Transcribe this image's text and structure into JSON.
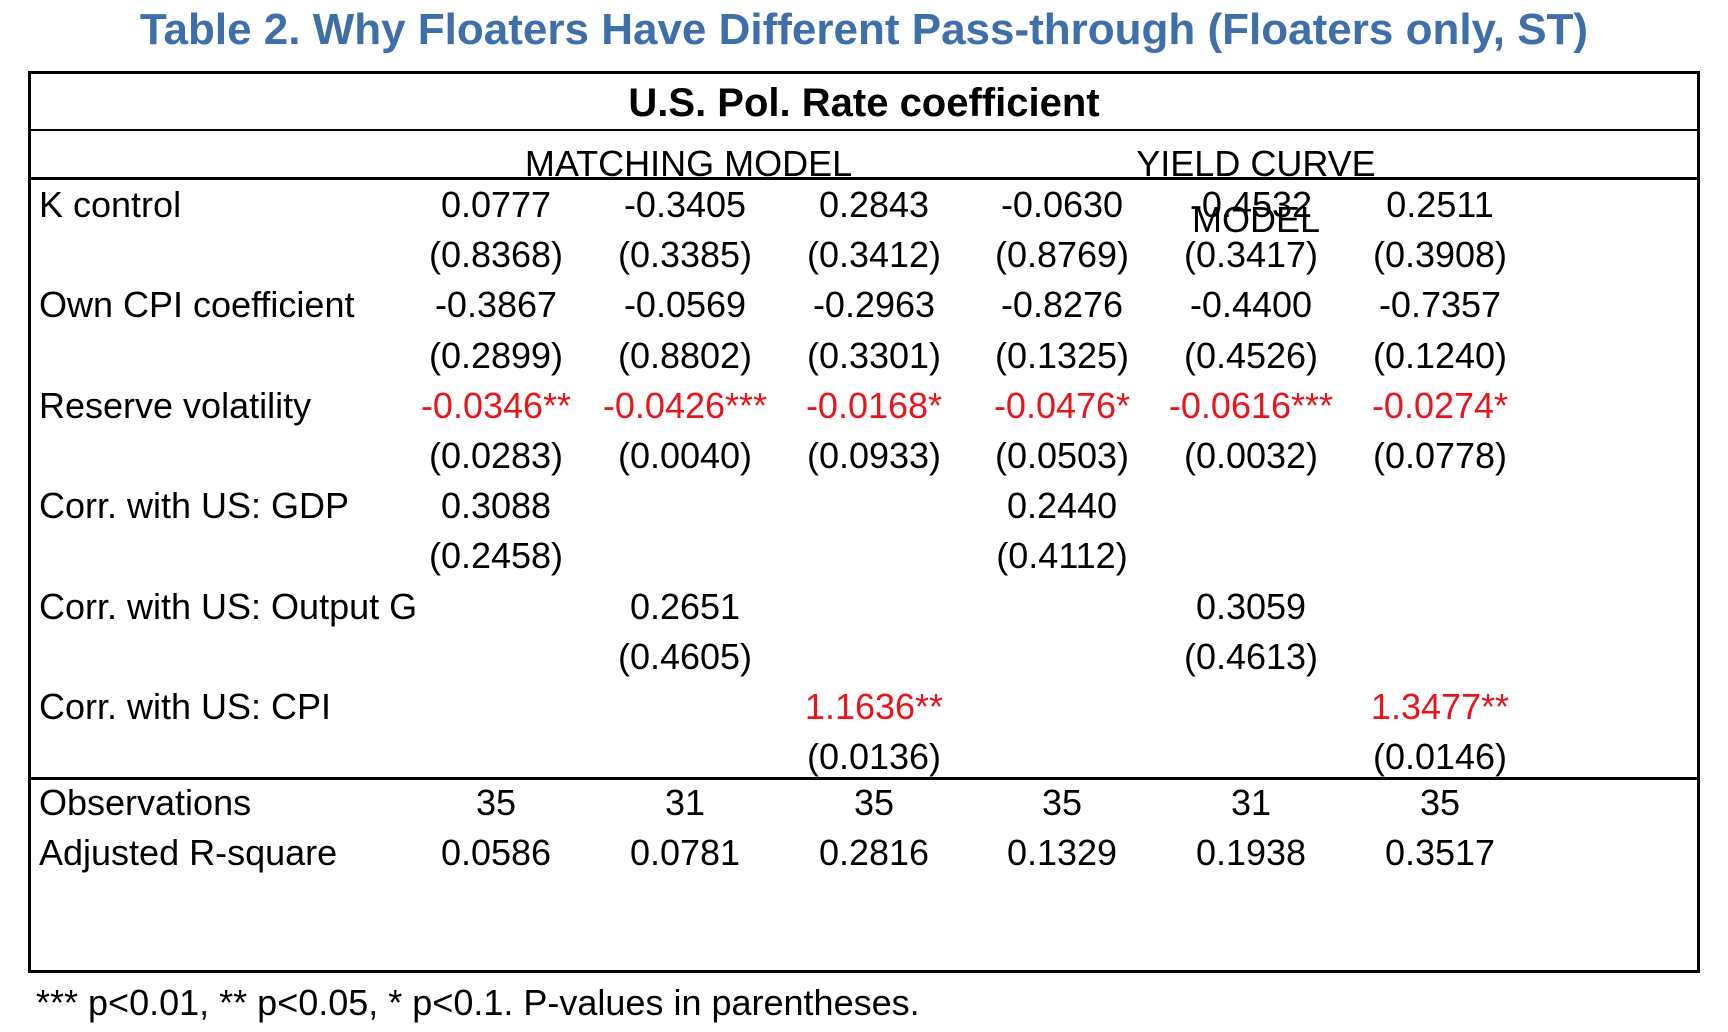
{
  "title": "Table 2. Why Floaters Have Different Pass-through (Floaters only, ST)",
  "header": "U.S. Pol. Rate coefficient",
  "models": [
    "MATCHING MODEL",
    "YIELD CURVE MODEL"
  ],
  "rows": [
    {
      "label": "K control",
      "values": [
        "0.0777",
        "-0.3405",
        "0.2843",
        "-0.0630",
        "-0.4532",
        "0.2511"
      ],
      "pvalues": [
        "(0.8368)",
        "(0.3385)",
        "(0.3412)",
        "(0.8769)",
        "(0.3417)",
        "(0.3908)"
      ],
      "significant": [
        false,
        false,
        false,
        false,
        false,
        false
      ]
    },
    {
      "label": "Own CPI coefficient",
      "values": [
        "-0.3867",
        "-0.0569",
        "-0.2963",
        "-0.8276",
        "-0.4400",
        "-0.7357"
      ],
      "pvalues": [
        "(0.2899)",
        "(0.8802)",
        "(0.3301)",
        "(0.1325)",
        "(0.4526)",
        "(0.1240)"
      ],
      "significant": [
        false,
        false,
        false,
        false,
        false,
        false
      ]
    },
    {
      "label": "Reserve volatility",
      "values": [
        "-0.0346**",
        "-0.0426***",
        "-0.0168*",
        "-0.0476*",
        "-0.0616***",
        "-0.0274*"
      ],
      "pvalues": [
        "(0.0283)",
        "(0.0040)",
        "(0.0933)",
        "(0.0503)",
        "(0.0032)",
        "(0.0778)"
      ],
      "significant": [
        true,
        true,
        true,
        true,
        true,
        true
      ]
    },
    {
      "label": "Corr. with US: GDP",
      "values": [
        "0.3088",
        "",
        "",
        "0.2440",
        "",
        ""
      ],
      "pvalues": [
        "(0.2458)",
        "",
        "",
        "(0.4112)",
        "",
        ""
      ],
      "significant": [
        false,
        false,
        false,
        false,
        false,
        false
      ]
    },
    {
      "label": "Corr. with US: Output G",
      "values": [
        "",
        "0.2651",
        "",
        "",
        "0.3059",
        ""
      ],
      "pvalues": [
        "",
        "(0.4605)",
        "",
        "",
        "(0.4613)",
        ""
      ],
      "significant": [
        false,
        false,
        false,
        false,
        false,
        false
      ]
    },
    {
      "label": "Corr. with US: CPI",
      "values": [
        "",
        "",
        "1.1636**",
        "",
        "",
        "1.3477**"
      ],
      "pvalues": [
        "",
        "",
        "(0.0136)",
        "",
        "",
        "(0.0146)"
      ],
      "significant": [
        false,
        false,
        true,
        false,
        false,
        true
      ]
    }
  ],
  "stats": [
    {
      "label": "Observations",
      "values": [
        "35",
        "31",
        "35",
        "35",
        "31",
        "35"
      ]
    },
    {
      "label": "Adjusted R-square",
      "values": [
        "0.0586",
        "0.0781",
        "0.2816",
        "0.1329",
        "0.1938",
        "0.3517"
      ]
    }
  ],
  "footnote": "*** p<0.01, ** p<0.05, * p<0.1. P-values in parentheses.",
  "colors": {
    "title": "#3f6faa",
    "significant": "#e8151c"
  }
}
